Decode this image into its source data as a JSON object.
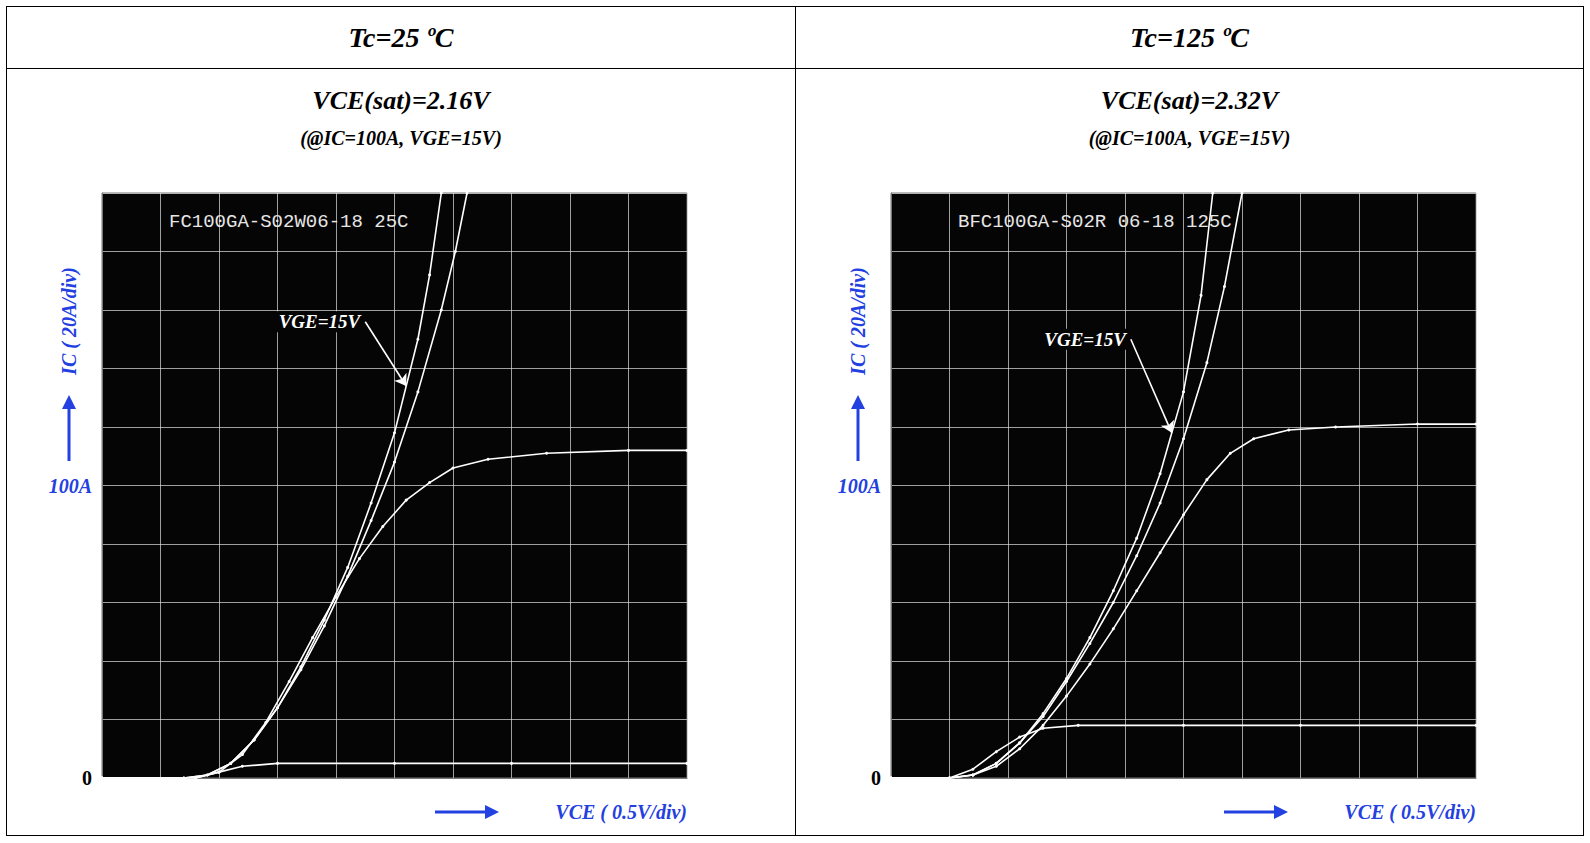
{
  "chart_data": [
    {
      "type": "line",
      "title": "Tc=25 ºC",
      "subtitle": "VCE(sat)=2.16V",
      "conditions": "(@IC=100A, VGE=15V)",
      "screen_label": "FC100GA-S02W06-18 25C",
      "xlabel": "VCE ( 0.5V/div)",
      "ylabel": "IC ( 20A/div)",
      "xlim": [
        0,
        5
      ],
      "ylim": [
        0,
        200
      ],
      "yticks": [
        0,
        {
          "value": 100,
          "label": "100A"
        }
      ],
      "x_divisions": [
        0,
        0.5,
        1,
        1.5,
        2,
        2.5,
        3,
        3.5,
        4,
        4.5,
        5
      ],
      "y_divisions": [
        0,
        20,
        40,
        60,
        80,
        100,
        120,
        140,
        160,
        180,
        200
      ],
      "grid": true,
      "tick_labels": "y",
      "color": "#ffffff",
      "marker": "circle",
      "line_style": "solid",
      "annotations": [
        {
          "text": "VGE=15V",
          "x": 2.25,
          "y": 156,
          "arrow_x": 2.6,
          "arrow_y": 134
        }
      ],
      "series": [
        {
          "x": [
            0,
            0.7,
            0.9,
            1.1,
            1.3,
            1.5,
            1.7,
            1.9,
            2.1,
            2.3,
            2.5,
            2.7,
            2.8,
            2.9
          ],
          "values": [
            0,
            0,
            1,
            5,
            13,
            24,
            38,
            54,
            72,
            94,
            118,
            150,
            172,
            200
          ]
        },
        {
          "x": [
            0,
            0.7,
            0.9,
            1.1,
            1.3,
            1.5,
            1.7,
            1.9,
            2.1,
            2.3,
            2.5,
            2.7,
            2.9,
            3.02,
            3.12
          ],
          "values": [
            0,
            0,
            1,
            5,
            13,
            24,
            37,
            52,
            69,
            88,
            108,
            132,
            160,
            180,
            200
          ]
        },
        {
          "x": [
            0,
            0.8,
            1.0,
            1.2,
            1.4,
            1.6,
            1.8,
            2.0,
            2.2,
            2.4,
            2.6,
            2.8,
            3.0,
            3.3,
            3.8,
            4.5,
            5
          ],
          "values": [
            0,
            0,
            2,
            8,
            19,
            33,
            48,
            62,
            75,
            86,
            95,
            101,
            106,
            109,
            111,
            112,
            112
          ]
        },
        {
          "x": [
            0,
            0.8,
            1.0,
            1.2,
            1.5,
            2.5,
            3.5,
            5
          ],
          "values": [
            0,
            0,
            2,
            4,
            5,
            5,
            5,
            5
          ]
        }
      ]
    },
    {
      "type": "line",
      "title": "Tc=125 ºC",
      "subtitle": "VCE(sat)=2.32V",
      "conditions": "(@IC=100A, VGE=15V)",
      "screen_label": "BFC100GA-S02R 06-18 125C",
      "xlabel": "VCE ( 0.5V/div)",
      "ylabel": "IC ( 20A/div)",
      "xlim": [
        0,
        5
      ],
      "ylim": [
        0,
        200
      ],
      "yticks": [
        0,
        {
          "value": 100,
          "label": "100A"
        }
      ],
      "x_divisions": [
        0,
        0.5,
        1,
        1.5,
        2,
        2.5,
        3,
        3.5,
        4,
        4.5,
        5
      ],
      "y_divisions": [
        0,
        20,
        40,
        60,
        80,
        100,
        120,
        140,
        160,
        180,
        200
      ],
      "grid": true,
      "tick_labels": "y",
      "color": "#ffffff",
      "marker": "circle",
      "line_style": "solid",
      "annotations": [
        {
          "text": "VGE=15V",
          "x": 2.05,
          "y": 150,
          "arrow_x": 2.4,
          "arrow_y": 118
        }
      ],
      "series": [
        {
          "x": [
            0,
            0.5,
            0.7,
            0.9,
            1.1,
            1.3,
            1.5,
            1.7,
            1.9,
            2.1,
            2.3,
            2.5,
            2.65,
            2.75
          ],
          "values": [
            0,
            0,
            1,
            5,
            12,
            22,
            34,
            48,
            64,
            82,
            104,
            132,
            165,
            200
          ]
        },
        {
          "x": [
            0,
            0.5,
            0.7,
            0.9,
            1.1,
            1.3,
            1.5,
            1.7,
            1.9,
            2.1,
            2.3,
            2.5,
            2.7,
            2.85,
            3.0
          ],
          "values": [
            0,
            0,
            1,
            5,
            12,
            21,
            33,
            46,
            60,
            76,
            94,
            116,
            142,
            168,
            200
          ]
        },
        {
          "x": [
            0,
            0.5,
            0.7,
            0.9,
            1.1,
            1.3,
            1.5,
            1.7,
            1.9,
            2.1,
            2.3,
            2.5,
            2.7,
            2.9,
            3.1,
            3.4,
            3.8,
            4.5,
            5
          ],
          "values": [
            0,
            0,
            1,
            4,
            10,
            18,
            28,
            39,
            51,
            64,
            77,
            90,
            102,
            111,
            116,
            119,
            120,
            121,
            121
          ]
        },
        {
          "x": [
            0,
            0.5,
            0.7,
            0.9,
            1.1,
            1.3,
            1.6,
            2.5,
            3.5,
            5
          ],
          "values": [
            0,
            0,
            3,
            9,
            14,
            17,
            18,
            18,
            18,
            18
          ]
        }
      ]
    }
  ]
}
